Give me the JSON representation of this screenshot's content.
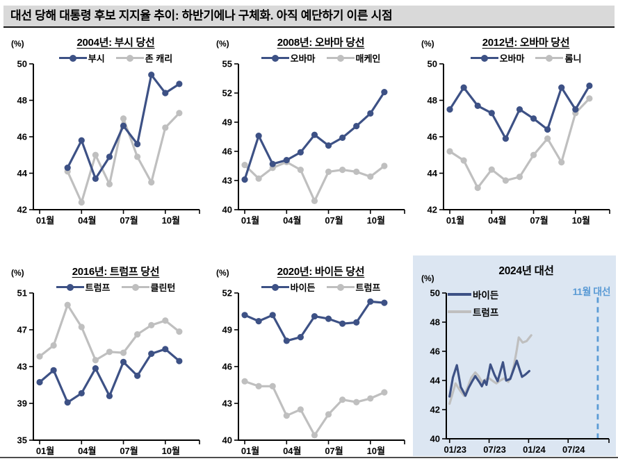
{
  "header": {
    "title": "대선 당해 대통령 후보 지지율 추이: 하반기에나 구체화. 아직 예단하기 이른 시점"
  },
  "colors": {
    "navy": "#3d5185",
    "gray": "#bfbfbf",
    "header_bg": "#d9d9d9",
    "panel_blue_bg": "#dce6f2",
    "accent_blue": "#5b9bd5",
    "axis": "#000000"
  },
  "chart_data": [
    {
      "type": "line",
      "title": "2004년: 부시 당선",
      "unit": "(%)",
      "ylim": [
        42,
        50
      ],
      "yticks": [
        42,
        44,
        46,
        48,
        50
      ],
      "xlim": [
        0.55,
        12.45
      ],
      "xticks": [
        {
          "v": 1,
          "label": "01월"
        },
        {
          "v": 4,
          "label": "04월"
        },
        {
          "v": 7,
          "label": "07월"
        },
        {
          "v": 10,
          "label": "10월"
        }
      ],
      "series": [
        {
          "name": "부시",
          "color_key": "navy",
          "marker": true,
          "x": [
            3,
            4,
            5,
            6,
            7,
            8,
            9,
            10,
            11
          ],
          "y": [
            44.3,
            45.8,
            43.7,
            44.9,
            46.6,
            45.6,
            49.4,
            48.4,
            48.9
          ]
        },
        {
          "name": "존 캐리",
          "color_key": "gray",
          "marker": true,
          "x": [
            3,
            4,
            5,
            6,
            7,
            8,
            9,
            10,
            11
          ],
          "y": [
            44.1,
            42.4,
            45.0,
            43.4,
            47.0,
            44.9,
            43.5,
            46.5,
            47.3
          ]
        }
      ]
    },
    {
      "type": "line",
      "title": "2008년: 오바마 당선",
      "unit": "(%)",
      "ylim": [
        40,
        55
      ],
      "yticks": [
        40,
        43,
        46,
        49,
        52,
        55
      ],
      "xlim": [
        0.55,
        12.45
      ],
      "xticks": [
        {
          "v": 1,
          "label": "01월"
        },
        {
          "v": 4,
          "label": "04월"
        },
        {
          "v": 7,
          "label": "07월"
        },
        {
          "v": 10,
          "label": "10월"
        }
      ],
      "series": [
        {
          "name": "오바마",
          "color_key": "navy",
          "marker": true,
          "x": [
            1,
            2,
            3,
            4,
            5,
            6,
            7,
            8,
            9,
            10,
            11
          ],
          "y": [
            43.1,
            47.6,
            44.7,
            45.1,
            45.9,
            47.7,
            46.6,
            47.4,
            48.6,
            49.9,
            52.1
          ]
        },
        {
          "name": "매케인",
          "color_key": "gray",
          "marker": true,
          "x": [
            1,
            2,
            3,
            4,
            5,
            6,
            7,
            8,
            9,
            10,
            11
          ],
          "y": [
            44.6,
            43.2,
            44.3,
            44.9,
            44.1,
            40.9,
            43.9,
            44.1,
            43.9,
            43.4,
            44.5
          ]
        }
      ]
    },
    {
      "type": "line",
      "title": "2012년: 오바마 당선",
      "unit": "(%)",
      "ylim": [
        42,
        50
      ],
      "yticks": [
        42,
        44,
        46,
        48,
        50
      ],
      "xlim": [
        0.55,
        12.45
      ],
      "xticks": [
        {
          "v": 1,
          "label": "01월"
        },
        {
          "v": 4,
          "label": "04월"
        },
        {
          "v": 7,
          "label": "07월"
        },
        {
          "v": 10,
          "label": "10월"
        }
      ],
      "series": [
        {
          "name": "오바마",
          "color_key": "navy",
          "marker": true,
          "x": [
            1,
            2,
            3,
            4,
            5,
            6,
            7,
            8,
            9,
            10,
            11
          ],
          "y": [
            47.5,
            48.7,
            47.7,
            47.3,
            45.9,
            47.5,
            47.0,
            46.4,
            48.7,
            47.5,
            48.8
          ]
        },
        {
          "name": "롬니",
          "color_key": "gray",
          "marker": true,
          "x": [
            1,
            2,
            3,
            4,
            5,
            6,
            7,
            8,
            9,
            10,
            11
          ],
          "y": [
            45.2,
            44.7,
            43.2,
            44.2,
            43.6,
            43.8,
            45.0,
            45.9,
            44.6,
            47.3,
            48.1
          ]
        }
      ]
    },
    {
      "type": "line",
      "title": "2016년: 트럼프 당선",
      "unit": "(%)",
      "ylim": [
        35,
        51
      ],
      "yticks": [
        35,
        39,
        43,
        47,
        51
      ],
      "xlim": [
        0.55,
        12.45
      ],
      "xticks": [
        {
          "v": 1,
          "label": "01월"
        },
        {
          "v": 4,
          "label": "04월"
        },
        {
          "v": 7,
          "label": "07월"
        },
        {
          "v": 10,
          "label": "10월"
        }
      ],
      "series": [
        {
          "name": "트럼프",
          "color_key": "navy",
          "marker": true,
          "x": [
            1,
            2,
            3,
            4,
            5,
            6,
            7,
            8,
            9,
            10,
            11
          ],
          "y": [
            41.3,
            42.6,
            39.1,
            40.1,
            42.8,
            39.8,
            43.5,
            42.0,
            44.4,
            44.9,
            43.6
          ]
        },
        {
          "name": "클린턴",
          "color_key": "gray",
          "marker": true,
          "x": [
            1,
            2,
            3,
            4,
            5,
            6,
            7,
            8,
            9,
            10,
            11
          ],
          "y": [
            44.1,
            45.3,
            49.7,
            47.3,
            43.7,
            44.6,
            44.5,
            46.5,
            47.5,
            48.0,
            46.8
          ]
        }
      ]
    },
    {
      "type": "line",
      "title": "2020년: 바이든 당선",
      "unit": "(%)",
      "ylim": [
        40,
        52
      ],
      "yticks": [
        40,
        43,
        46,
        49,
        52
      ],
      "xlim": [
        0.55,
        12.45
      ],
      "xticks": [
        {
          "v": 1,
          "label": "01월"
        },
        {
          "v": 4,
          "label": "04월"
        },
        {
          "v": 7,
          "label": "07월"
        },
        {
          "v": 10,
          "label": "10월"
        }
      ],
      "series": [
        {
          "name": "바이든",
          "color_key": "navy",
          "marker": true,
          "x": [
            1,
            2,
            3,
            4,
            5,
            6,
            7,
            8,
            9,
            10,
            11
          ],
          "y": [
            50.2,
            49.7,
            50.2,
            48.1,
            48.4,
            50.1,
            49.9,
            49.5,
            49.6,
            51.3,
            51.2
          ]
        },
        {
          "name": "트럼프",
          "color_key": "gray",
          "marker": true,
          "x": [
            1,
            2,
            3,
            4,
            5,
            6,
            7,
            8,
            9,
            10,
            11
          ],
          "y": [
            44.8,
            44.4,
            44.4,
            42.0,
            42.5,
            40.4,
            42.1,
            43.3,
            43.1,
            43.4,
            43.9
          ]
        }
      ]
    },
    {
      "type": "line",
      "title": "2024년 대선",
      "unit": "(%)",
      "ylim": [
        40,
        50
      ],
      "yticks": [
        40,
        42,
        44,
        46,
        48,
        50
      ],
      "xlim": [
        -0.5,
        24.2
      ],
      "xticks": [
        {
          "v": 0,
          "label": "01/23"
        },
        {
          "v": 6,
          "label": "07/23"
        },
        {
          "v": 12,
          "label": "01/24"
        },
        {
          "v": 18,
          "label": "07/24"
        }
      ],
      "vline": {
        "x": 22.5,
        "y_from": 49.7,
        "y_to": 40,
        "color_key": "accent_blue"
      },
      "annotation": {
        "label": "11월 대선",
        "x": 22.5,
        "color_key": "accent_blue"
      },
      "series": [
        {
          "name": "바이든",
          "color_key": "navy",
          "marker": false,
          "x": [
            0,
            0.5,
            1.1,
            1.7,
            2.0,
            2.4,
            2.9,
            3.5,
            3.9,
            4.5,
            4.9,
            5.3,
            5.6,
            6.2,
            6.8,
            7.3,
            8.1,
            8.6,
            9.2,
            10.2,
            11.0,
            11.5,
            12.1
          ],
          "y": [
            42.9,
            44.2,
            45.05,
            43.55,
            43.3,
            42.95,
            43.5,
            44.0,
            44.3,
            43.9,
            43.6,
            44.0,
            43.7,
            45.1,
            44.4,
            43.95,
            45.25,
            44.0,
            44.1,
            45.35,
            44.25,
            44.4,
            44.65
          ]
        },
        {
          "name": "트럼프",
          "color_key": "gray",
          "marker": false,
          "x": [
            0,
            0.9,
            1.6,
            2.2,
            2.8,
            3.3,
            3.9,
            4.4,
            4.9,
            5.4,
            6.0,
            6.6,
            7.1,
            7.7,
            8.3,
            8.9,
            9.4,
            9.8,
            10.2,
            10.5,
            11.1,
            11.7,
            12.4
          ],
          "y": [
            42.4,
            43.8,
            43.3,
            42.95,
            43.6,
            44.2,
            44.55,
            44.3,
            43.9,
            44.05,
            44.15,
            43.95,
            43.8,
            44.0,
            44.15,
            43.9,
            44.35,
            45.1,
            46.1,
            46.95,
            46.6,
            46.7,
            47.1
          ]
        }
      ]
    }
  ]
}
